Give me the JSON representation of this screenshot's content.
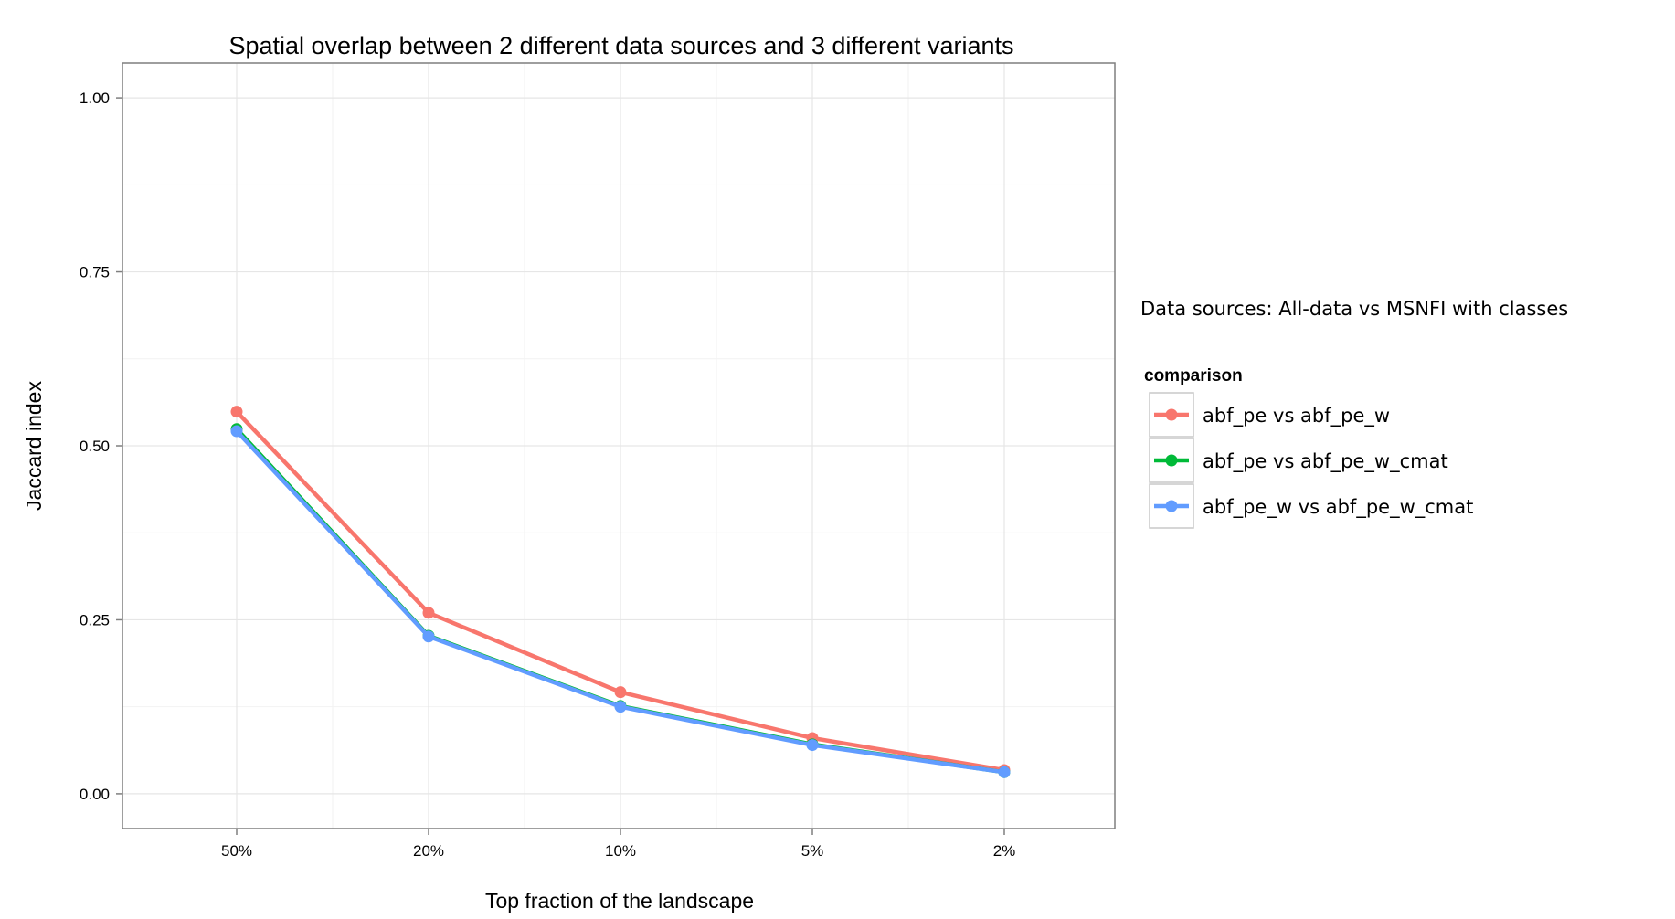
{
  "chart_data": {
    "type": "line",
    "title": "Spatial overlap between 2 different data sources and 3 different variants",
    "xlabel": "Top fraction of the landscape",
    "ylabel": "Jaccard index",
    "categories": [
      "50%",
      "20%",
      "10%",
      "5%",
      "2%"
    ],
    "ylim": [
      -0.05,
      1.05
    ],
    "yticks": [
      0.0,
      0.25,
      0.5,
      0.75,
      1.0
    ],
    "ytick_labels": [
      "0.00",
      "0.25",
      "0.50",
      "0.75",
      "1.00"
    ],
    "grid": true,
    "legend_placement": "right",
    "annotation": "Data sources: All-data vs MSNFI with classes",
    "legend_title": "comparison",
    "series": [
      {
        "name": "abf_pe vs abf_pe_w",
        "color": "#F8766D",
        "values": [
          0.549,
          0.26,
          0.146,
          0.08,
          0.034
        ]
      },
      {
        "name": "abf_pe vs abf_pe_w_cmat",
        "color": "#00BA38",
        "values": [
          0.524,
          0.227,
          0.126,
          0.071,
          0.031
        ]
      },
      {
        "name": "abf_pe_w vs abf_pe_w_cmat",
        "color": "#619CFF",
        "values": [
          0.521,
          0.226,
          0.125,
          0.07,
          0.031
        ]
      }
    ]
  }
}
